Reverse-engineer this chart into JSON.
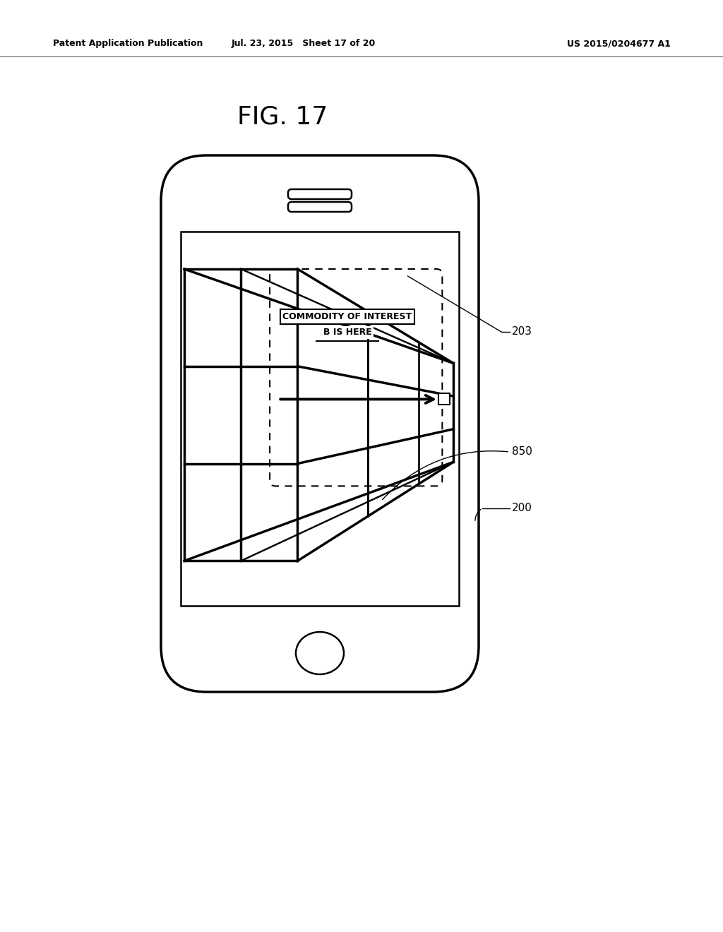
{
  "bg_color": "#ffffff",
  "title_fig": "FIG. 17",
  "header_left": "Patent Application Publication",
  "header_mid": "Jul. 23, 2015   Sheet 17 of 20",
  "header_right": "US 2015/0204677 A1",
  "label_203": "203",
  "label_850": "850",
  "label_200": "200",
  "text_line1": "COMMODITY OF INTEREST",
  "text_line2": "B IS HERE"
}
